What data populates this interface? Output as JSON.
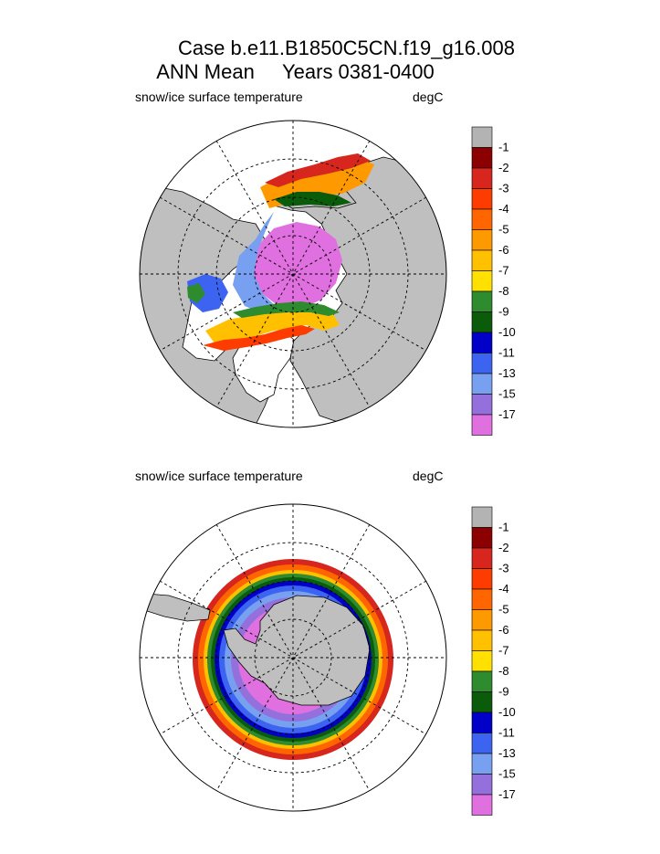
{
  "header": {
    "title_line1": "Case b.e11.B1850C5CN.f19_g16.008",
    "title_line2": "ANN Mean     Years 0381-0400"
  },
  "colors": {
    "land": "#bfbfbf",
    "palette": [
      "#b3b3b3",
      "#8b0000",
      "#d7261e",
      "#ff3c00",
      "#ff6600",
      "#ff9900",
      "#ffc000",
      "#ffe000",
      "#2e8b2e",
      "#0a5c0a",
      "#0000c8",
      "#3c64f0",
      "#78a0f0",
      "#9370db",
      "#e070e0"
    ]
  },
  "chart_data": [
    {
      "type": "polar-map",
      "hemisphere": "north",
      "variable_label": "snow/ice surface temperature",
      "units_label": "degC",
      "colorbar": {
        "labels": [
          "-1",
          "-2",
          "-3",
          "-4",
          "-5",
          "-6",
          "-7",
          "-8",
          "-9",
          "-10",
          "-11",
          "-13",
          "-15",
          "-17"
        ]
      },
      "grid": true
    },
    {
      "type": "polar-map",
      "hemisphere": "south",
      "variable_label": "snow/ice surface temperature",
      "units_label": "degC",
      "colorbar": {
        "labels": [
          "-1",
          "-2",
          "-3",
          "-4",
          "-5",
          "-6",
          "-7",
          "-8",
          "-9",
          "-10",
          "-11",
          "-13",
          "-15",
          "-17"
        ]
      },
      "grid": true
    }
  ]
}
